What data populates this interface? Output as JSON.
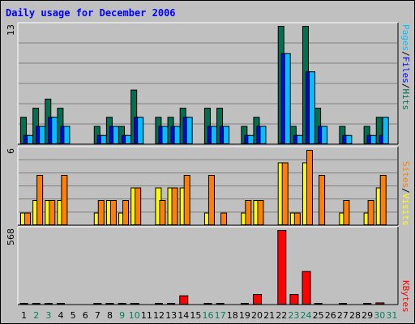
{
  "chart_data": {
    "type": "bar",
    "title": "Daily usage for December 2006",
    "days": [
      "1",
      "2",
      "3",
      "4",
      "5",
      "6",
      "7",
      "8",
      "9",
      "10",
      "11",
      "12",
      "13",
      "14",
      "15",
      "16",
      "17",
      "18",
      "19",
      "20",
      "21",
      "22",
      "23",
      "24",
      "25",
      "26",
      "27",
      "28",
      "29",
      "30",
      "31"
    ],
    "weekend_days": [
      "2",
      "3",
      "9",
      "10",
      "16",
      "17",
      "23",
      "24",
      "30",
      "31"
    ],
    "panels": [
      {
        "max_label": "13",
        "ylim": [
          0,
          13
        ],
        "legend": [
          "Pages",
          "/",
          "Files",
          "/",
          "Hits"
        ],
        "series": [
          {
            "name": "Hits",
            "color": "#007050",
            "values": [
              3,
              4,
              5,
              4,
              0,
              0,
              2,
              3,
              2,
              6,
              0,
              3,
              3,
              4,
              0,
              4,
              4,
              0,
              2,
              3,
              0,
              13,
              2,
              13,
              4,
              0,
              2,
              0,
              2,
              3,
              0
            ]
          },
          {
            "name": "Files",
            "color": "#0000ff",
            "values": [
              1,
              2,
              3,
              2,
              0,
              0,
              1,
              2,
              1,
              3,
              0,
              2,
              2,
              3,
              0,
              2,
              2,
              0,
              1,
              2,
              0,
              10,
              1,
              8,
              2,
              0,
              1,
              0,
              1,
              1,
              0
            ]
          },
          {
            "name": "Pages",
            "color": "#00c0ff",
            "values": [
              1,
              2,
              3,
              2,
              0,
              0,
              1,
              2,
              1,
              3,
              0,
              2,
              2,
              3,
              0,
              2,
              2,
              0,
              1,
              2,
              0,
              10,
              1,
              8,
              2,
              0,
              1,
              0,
              1,
              3,
              0
            ]
          }
        ]
      },
      {
        "max_label": "6",
        "ylim": [
          0,
          6
        ],
        "legend": [
          "Sites",
          "/",
          "Visits"
        ],
        "series": [
          {
            "name": "Visits",
            "color": "#ffff00",
            "values": [
              1,
              2,
              2,
              2,
              0,
              0,
              1,
              2,
              1,
              3,
              0,
              3,
              3,
              3,
              0,
              1,
              0,
              0,
              1,
              2,
              0,
              5,
              1,
              5,
              0,
              0,
              1,
              0,
              1,
              3,
              0
            ]
          },
          {
            "name": "Sites",
            "color": "#ff8000",
            "values": [
              1,
              4,
              2,
              4,
              0,
              0,
              2,
              2,
              2,
              3,
              0,
              2,
              3,
              4,
              0,
              4,
              1,
              0,
              2,
              2,
              0,
              5,
              1,
              6,
              4,
              0,
              2,
              0,
              2,
              4,
              0
            ]
          }
        ]
      },
      {
        "max_label": "568",
        "ylim": [
          0,
          568
        ],
        "legend": [
          "KBytes"
        ],
        "series": [
          {
            "name": "KBytes",
            "color": "#ff0000",
            "values": [
              8,
              8,
              8,
              8,
              0,
              0,
              8,
              8,
              8,
              12,
              0,
              8,
              8,
              70,
              0,
              8,
              8,
              0,
              8,
              80,
              0,
              568,
              80,
              255,
              8,
              0,
              8,
              0,
              8,
              16,
              0
            ]
          }
        ]
      }
    ],
    "colors": {
      "day_label": "#000000",
      "weekend_label": "#00805c",
      "bar_outline": "#000000",
      "grid": "#808080"
    }
  }
}
